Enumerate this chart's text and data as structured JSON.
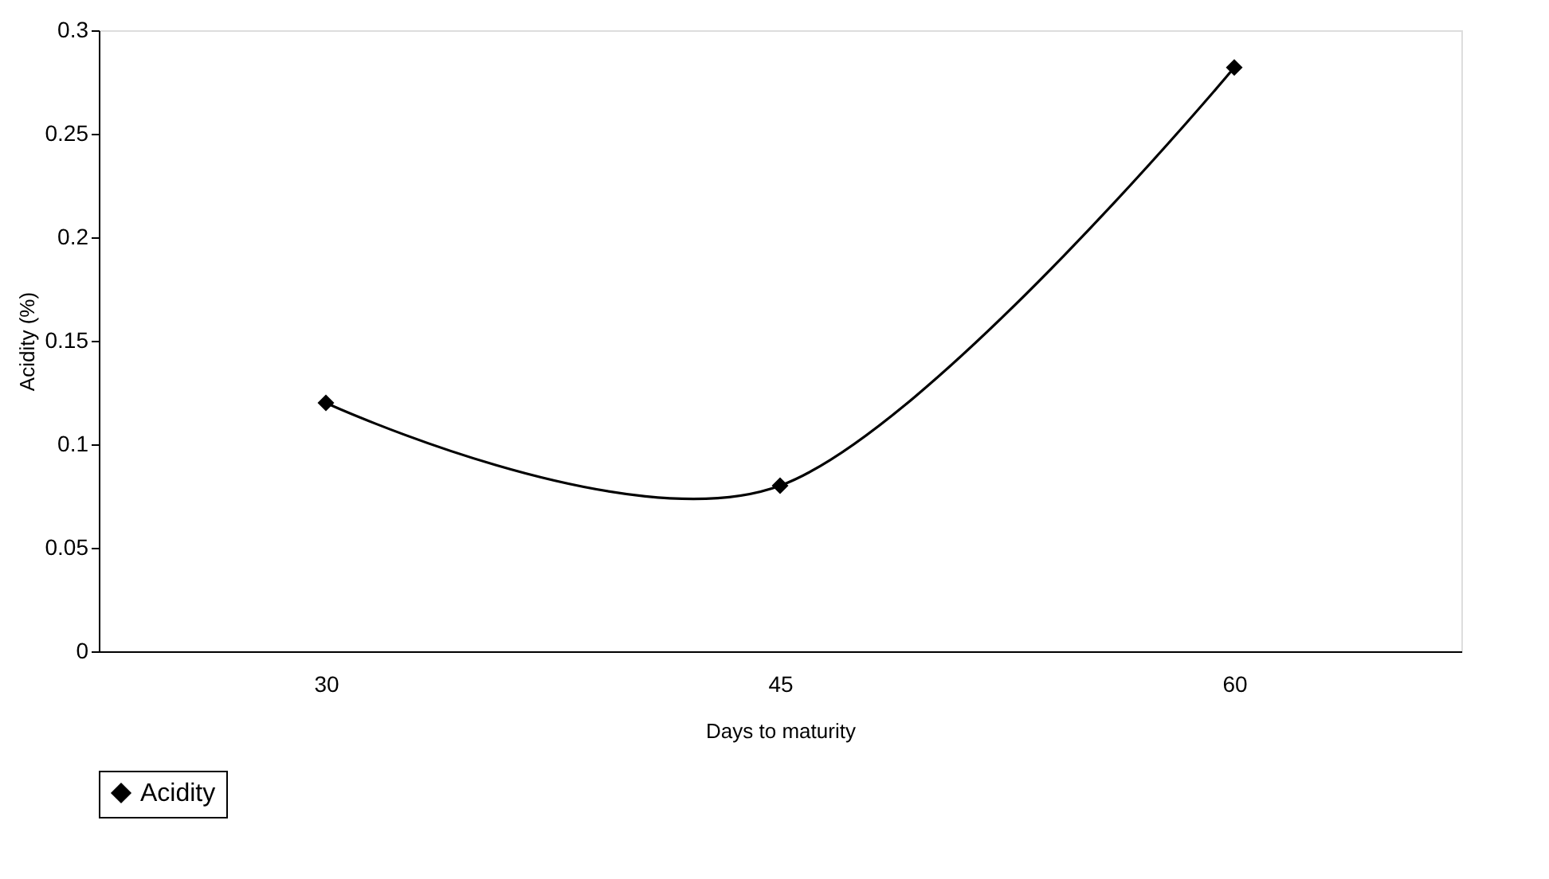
{
  "chart_data": {
    "type": "line",
    "xlabel": "Days to maturity",
    "ylabel": "Acidity (%)",
    "categories": [
      "30",
      "45",
      "60"
    ],
    "series": [
      {
        "name": "Acidity",
        "color": "#000000",
        "values": [
          0.12,
          0.08,
          0.282
        ]
      }
    ],
    "ylim": [
      0,
      0.3
    ],
    "yticks": [
      0,
      0.05,
      0.1,
      0.15,
      0.2,
      0.25,
      0.3
    ],
    "grid": false,
    "legend": "bottom",
    "marker": "diamond",
    "line_style": "solid"
  }
}
